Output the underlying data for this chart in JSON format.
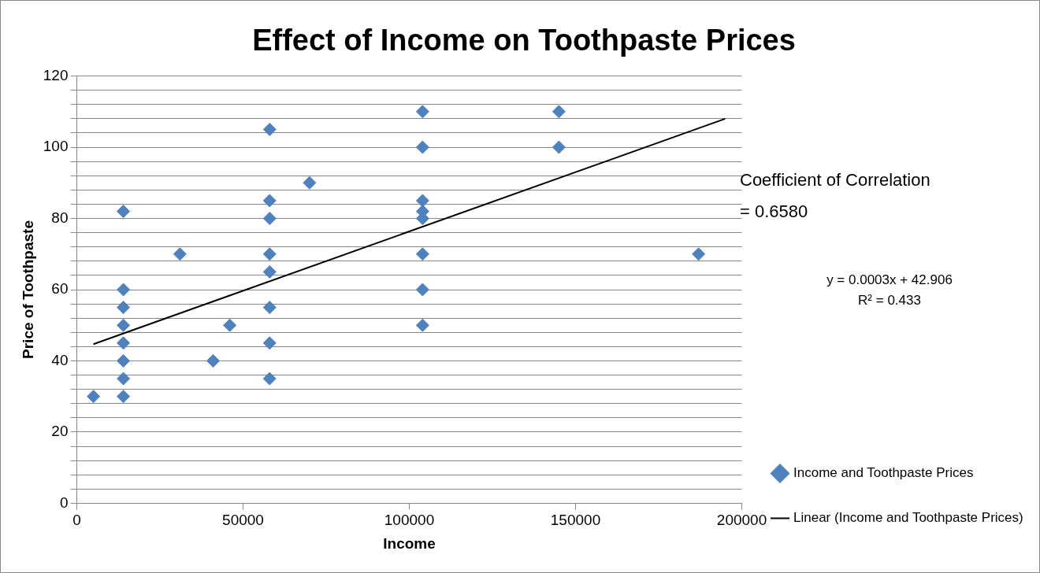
{
  "chart_data": {
    "type": "scatter",
    "title": "Effect of Income on Toothpaste Prices",
    "xlabel": "Income",
    "ylabel": "Price of Toothpaste",
    "xlim": [
      0,
      200000
    ],
    "xticks": [
      0,
      50000,
      100000,
      150000,
      200000
    ],
    "ylim": [
      0,
      120
    ],
    "yticks": [
      0,
      {
        "value": 4,
        "label": null
      },
      {
        "value": 8,
        "label": null
      },
      {
        "value": 12,
        "label": null
      },
      {
        "value": 16,
        "label": null
      },
      20,
      {
        "value": 24,
        "label": null
      },
      {
        "value": 28,
        "label": null
      },
      {
        "value": 32,
        "label": null
      },
      {
        "value": 36,
        "label": null
      },
      40,
      {
        "value": 44,
        "label": null
      },
      {
        "value": 48,
        "label": null
      },
      {
        "value": 52,
        "label": null
      },
      {
        "value": 56,
        "label": null
      },
      60,
      {
        "value": 64,
        "label": null
      },
      {
        "value": 68,
        "label": null
      },
      {
        "value": 72,
        "label": null
      },
      {
        "value": 76,
        "label": null
      },
      80,
      {
        "value": 84,
        "label": null
      },
      {
        "value": 88,
        "label": null
      },
      {
        "value": 92,
        "label": null
      },
      {
        "value": 96,
        "label": null
      },
      100,
      {
        "value": 104,
        "label": null
      },
      {
        "value": 108,
        "label": null
      },
      {
        "value": 112,
        "label": null
      },
      {
        "value": 116,
        "label": null
      },
      120
    ],
    "grid": "y",
    "legend": "right",
    "annotations": [
      "Coefficient of Correlation = 0.6580",
      "y = 0.0003x + 42.906",
      "R² = 0.433"
    ],
    "series": [
      {
        "name": "Income and Toothpaste Prices",
        "type": "scatter",
        "color": "#4f81bd",
        "marker": "diamond",
        "x": [
          5000,
          14000,
          14000,
          14000,
          14000,
          14000,
          14000,
          14000,
          14000,
          31000,
          41000,
          46000,
          58000,
          58000,
          58000,
          58000,
          58000,
          58000,
          58000,
          58000,
          70000,
          104000,
          104000,
          104000,
          104000,
          104000,
          104000,
          104000,
          104000,
          145000,
          145000,
          187000
        ],
        "values": [
          30,
          82,
          60,
          55,
          50,
          45,
          40,
          35,
          30,
          70,
          40,
          50,
          105,
          85,
          80,
          70,
          65,
          55,
          45,
          35,
          90,
          110,
          100,
          85,
          82,
          80,
          70,
          60,
          50,
          110,
          100,
          70
        ]
      },
      {
        "name": "Linear (Income and Toothpaste Prices)",
        "type": "line",
        "color": "#000000",
        "marker": "none",
        "x": [
          5000,
          195000
        ],
        "values": [
          44.7,
          108
        ]
      }
    ]
  }
}
